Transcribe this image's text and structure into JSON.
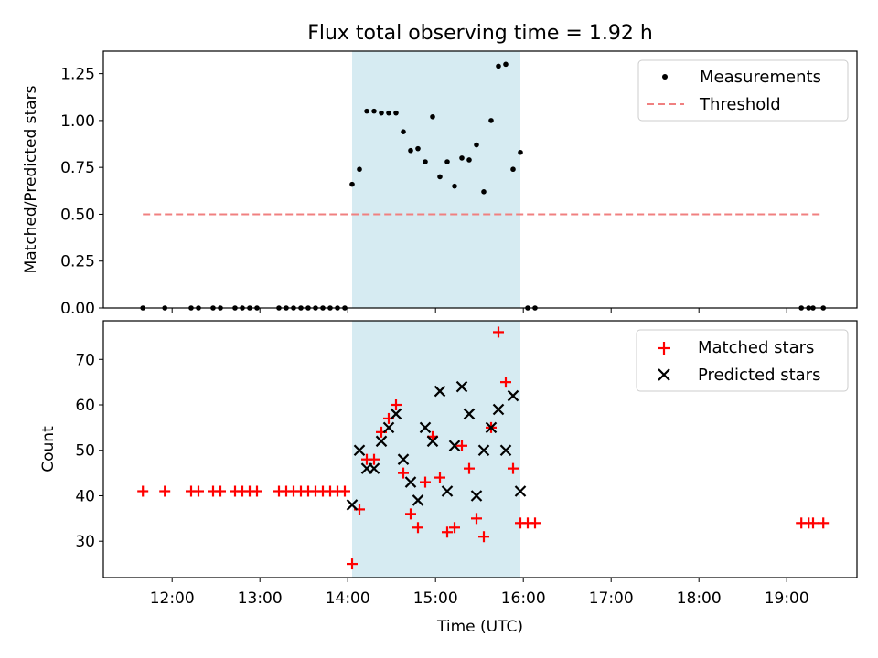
{
  "chart_data": [
    {
      "type": "scatter",
      "title": "Flux total observing time = 1.92 h",
      "xlabel": "",
      "ylabel": "Matched/Predicted stars",
      "ylim": [
        0,
        1.37
      ],
      "yticks": [
        "0.00",
        "0.25",
        "0.50",
        "0.75",
        "1.00",
        "1.25"
      ],
      "shaded_region": {
        "start": "14:03",
        "end": "15:58",
        "color": "#add8e6"
      },
      "legend_position": "top-right",
      "threshold": {
        "name": "Threshold",
        "y": 0.5,
        "x_range": [
          "11:40",
          "19:25"
        ],
        "color": "#f08080",
        "style": "dashed"
      },
      "series": [
        {
          "name": "Measurements",
          "color": "#000000",
          "points": [
            [
              "11:40",
              0
            ],
            [
              "11:55",
              0
            ],
            [
              "12:13",
              0
            ],
            [
              "12:18",
              0
            ],
            [
              "12:28",
              0
            ],
            [
              "12:33",
              0
            ],
            [
              "12:43",
              0
            ],
            [
              "12:48",
              0
            ],
            [
              "12:53",
              0
            ],
            [
              "12:58",
              0
            ],
            [
              "13:13",
              0
            ],
            [
              "13:18",
              0
            ],
            [
              "13:23",
              0
            ],
            [
              "13:28",
              0
            ],
            [
              "13:33",
              0
            ],
            [
              "13:38",
              0
            ],
            [
              "13:43",
              0
            ],
            [
              "13:48",
              0
            ],
            [
              "13:53",
              0
            ],
            [
              "13:58",
              0
            ],
            [
              "14:03",
              0.66
            ],
            [
              "14:08",
              0.74
            ],
            [
              "14:13",
              1.05
            ],
            [
              "14:18",
              1.05
            ],
            [
              "14:23",
              1.04
            ],
            [
              "14:28",
              1.04
            ],
            [
              "14:33",
              1.04
            ],
            [
              "14:38",
              0.94
            ],
            [
              "14:43",
              0.84
            ],
            [
              "14:48",
              0.85
            ],
            [
              "14:53",
              0.78
            ],
            [
              "14:58",
              1.02
            ],
            [
              "15:03",
              0.7
            ],
            [
              "15:08",
              0.78
            ],
            [
              "15:13",
              0.65
            ],
            [
              "15:18",
              0.8
            ],
            [
              "15:23",
              0.79
            ],
            [
              "15:28",
              0.87
            ],
            [
              "15:33",
              0.62
            ],
            [
              "15:38",
              1.0
            ],
            [
              "15:43",
              1.29
            ],
            [
              "15:48",
              1.3
            ],
            [
              "15:53",
              0.74
            ],
            [
              "15:58",
              0.83
            ],
            [
              "16:03",
              0
            ],
            [
              "16:08",
              0
            ],
            [
              "19:10",
              0
            ],
            [
              "19:15",
              0
            ],
            [
              "19:18",
              0
            ],
            [
              "19:25",
              0
            ]
          ]
        }
      ]
    },
    {
      "type": "scatter",
      "title": "",
      "xlabel": "Time (UTC)",
      "ylabel": "Count",
      "ylim": [
        22,
        78.5
      ],
      "yticks": [
        "30",
        "40",
        "50",
        "60",
        "70"
      ],
      "xticks": [
        "12:00",
        "13:00",
        "14:00",
        "15:00",
        "16:00",
        "17:00",
        "18:00",
        "19:00"
      ],
      "xlim": [
        "11:13",
        "19:48"
      ],
      "shaded_region": {
        "start": "14:03",
        "end": "15:58",
        "color": "#add8e6"
      },
      "legend_position": "top-right",
      "series": [
        {
          "name": "Matched stars",
          "color": "#ff0000",
          "marker": "+",
          "points": [
            [
              "11:40",
              41
            ],
            [
              "11:55",
              41
            ],
            [
              "12:13",
              41
            ],
            [
              "12:18",
              41
            ],
            [
              "12:28",
              41
            ],
            [
              "12:33",
              41
            ],
            [
              "12:43",
              41
            ],
            [
              "12:48",
              41
            ],
            [
              "12:53",
              41
            ],
            [
              "12:58",
              41
            ],
            [
              "13:13",
              41
            ],
            [
              "13:18",
              41
            ],
            [
              "13:23",
              41
            ],
            [
              "13:28",
              41
            ],
            [
              "13:33",
              41
            ],
            [
              "13:38",
              41
            ],
            [
              "13:43",
              41
            ],
            [
              "13:48",
              41
            ],
            [
              "13:53",
              41
            ],
            [
              "13:58",
              41
            ],
            [
              "14:03",
              25
            ],
            [
              "14:08",
              37
            ],
            [
              "14:13",
              48
            ],
            [
              "14:18",
              48
            ],
            [
              "14:23",
              54
            ],
            [
              "14:28",
              57
            ],
            [
              "14:33",
              60
            ],
            [
              "14:38",
              45
            ],
            [
              "14:43",
              36
            ],
            [
              "14:48",
              33
            ],
            [
              "14:53",
              43
            ],
            [
              "14:58",
              53
            ],
            [
              "15:03",
              44
            ],
            [
              "15:08",
              32
            ],
            [
              "15:13",
              33
            ],
            [
              "15:18",
              51
            ],
            [
              "15:23",
              46
            ],
            [
              "15:28",
              35
            ],
            [
              "15:33",
              31
            ],
            [
              "15:38",
              55
            ],
            [
              "15:43",
              76
            ],
            [
              "15:48",
              65
            ],
            [
              "15:53",
              46
            ],
            [
              "15:58",
              34
            ],
            [
              "16:03",
              34
            ],
            [
              "16:08",
              34
            ],
            [
              "19:10",
              34
            ],
            [
              "19:15",
              34
            ],
            [
              "19:18",
              34
            ],
            [
              "19:25",
              34
            ]
          ]
        },
        {
          "name": "Predicted stars",
          "color": "#000000",
          "marker": "x",
          "points": [
            [
              "14:03",
              38
            ],
            [
              "14:08",
              50
            ],
            [
              "14:13",
              46
            ],
            [
              "14:18",
              46
            ],
            [
              "14:23",
              52
            ],
            [
              "14:28",
              55
            ],
            [
              "14:33",
              58
            ],
            [
              "14:38",
              48
            ],
            [
              "14:43",
              43
            ],
            [
              "14:48",
              39
            ],
            [
              "14:53",
              55
            ],
            [
              "14:58",
              52
            ],
            [
              "15:03",
              63
            ],
            [
              "15:08",
              41
            ],
            [
              "15:13",
              51
            ],
            [
              "15:18",
              64
            ],
            [
              "15:23",
              58
            ],
            [
              "15:28",
              40
            ],
            [
              "15:33",
              50
            ],
            [
              "15:38",
              55
            ],
            [
              "15:43",
              59
            ],
            [
              "15:48",
              50
            ],
            [
              "15:53",
              62
            ],
            [
              "15:58",
              41
            ]
          ]
        }
      ]
    }
  ]
}
